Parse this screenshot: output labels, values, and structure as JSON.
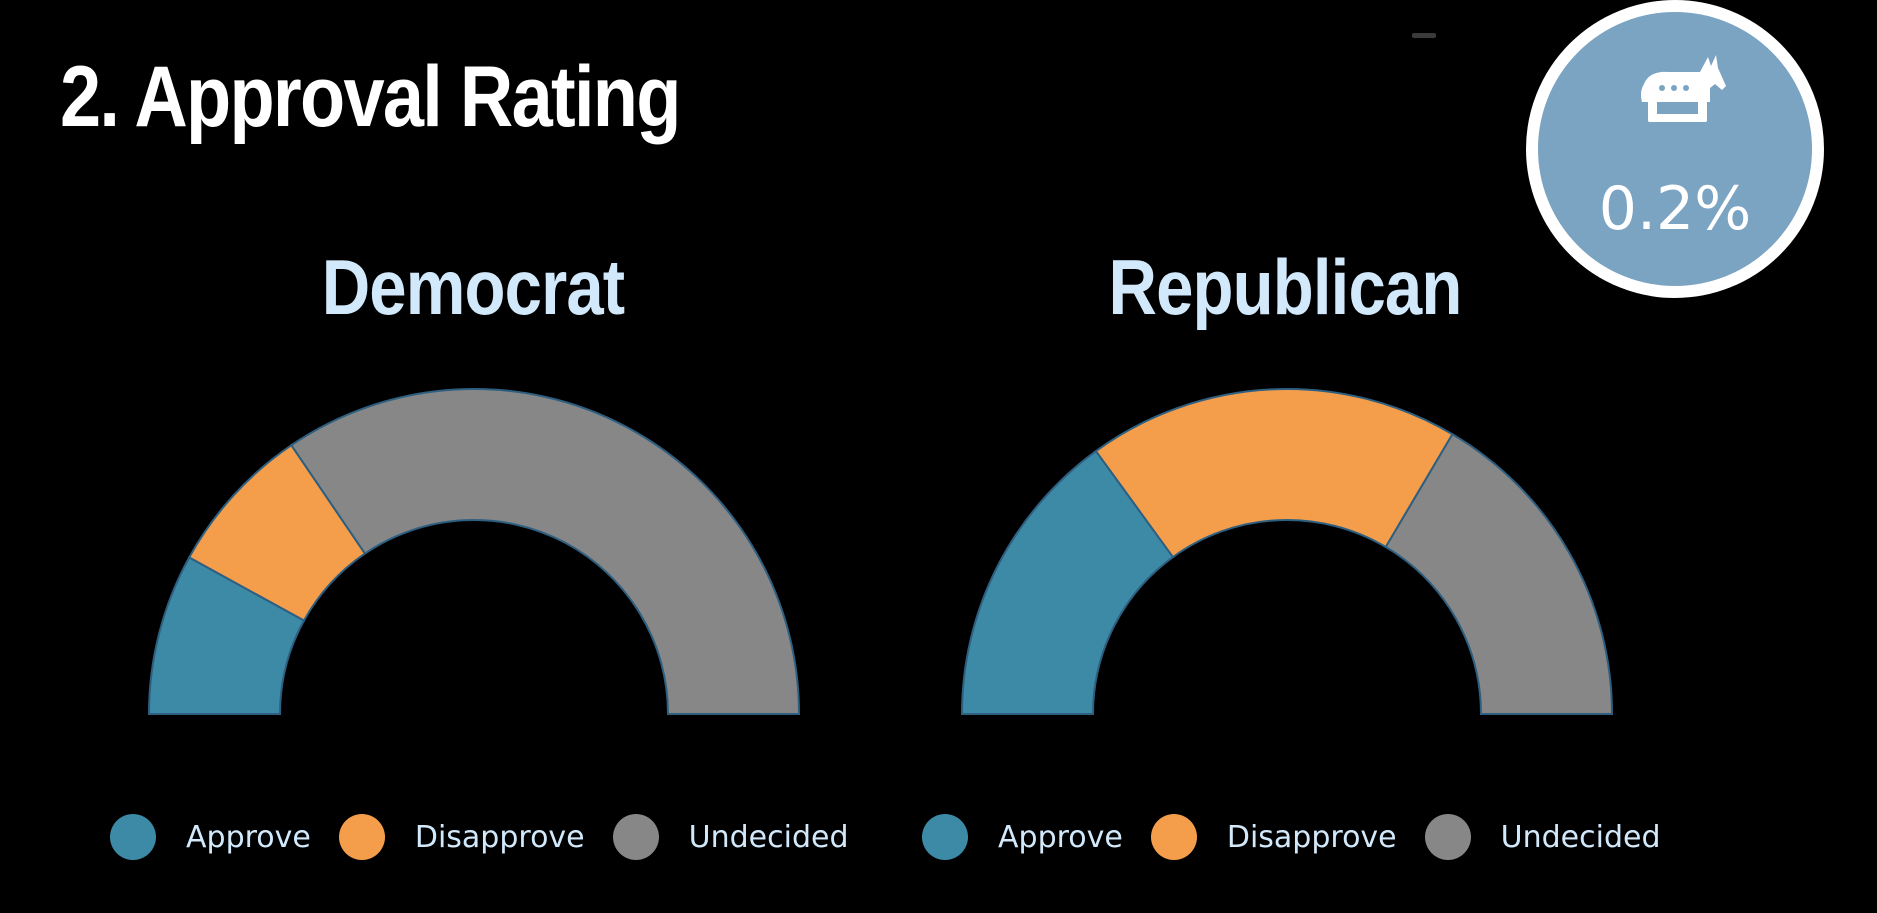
{
  "header": {
    "title": "2. Approval Rating"
  },
  "badge": {
    "icon": "donkey-icon",
    "value": "0.2%",
    "color": "#7ba3c2"
  },
  "colors": {
    "approve": "#3d8aa6",
    "disapprove": "#f49e4c",
    "undecided": "#878787",
    "title": "#d2e9fb"
  },
  "chart_data": [
    {
      "type": "pie",
      "subtype": "half-donut",
      "title": "Democrat",
      "categories": [
        "Approve",
        "Disapprove",
        "Undecided"
      ],
      "values": [
        16,
        15,
        69
      ],
      "legend": "bottom"
    },
    {
      "type": "pie",
      "subtype": "half-donut",
      "title": "Republican",
      "categories": [
        "Approve",
        "Disapprove",
        "Undecided"
      ],
      "values": [
        30,
        37,
        33
      ],
      "legend": "bottom"
    }
  ]
}
